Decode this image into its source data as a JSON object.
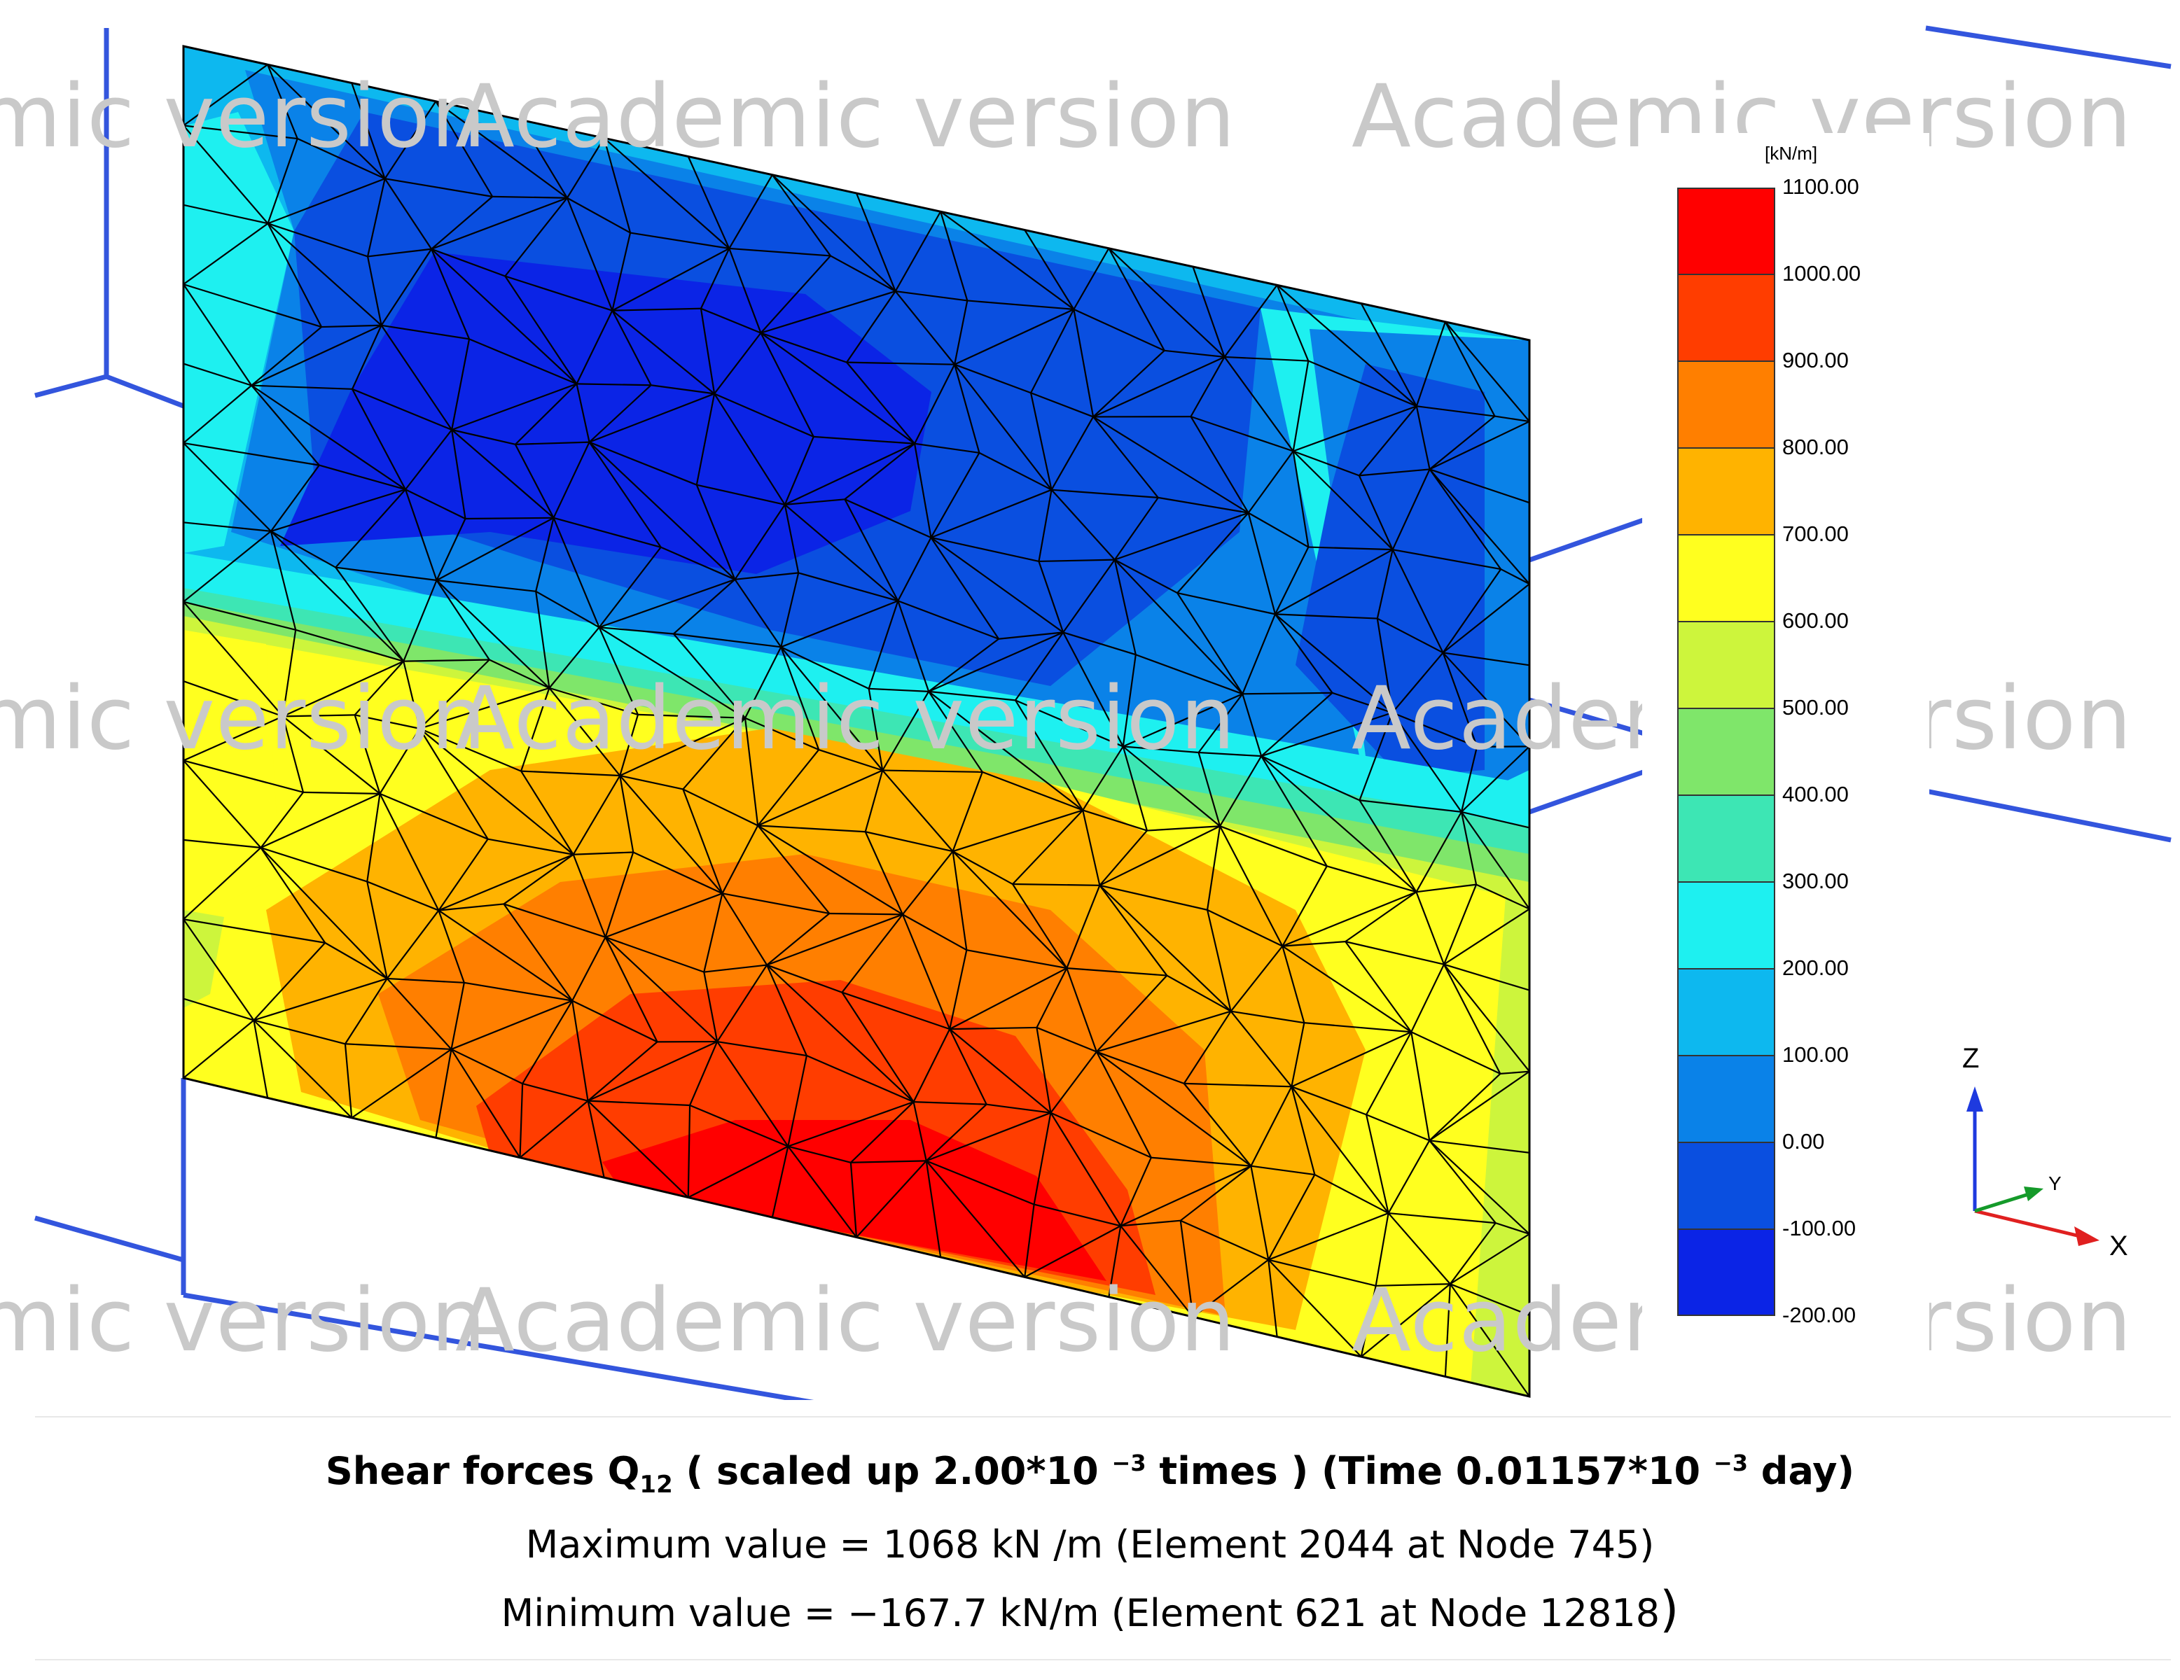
{
  "watermark": {
    "text": "Academic version"
  },
  "legend": {
    "unit": "[kN/m]",
    "levels": [
      "1100.00",
      "1000.00",
      "900.00",
      "800.00",
      "700.00",
      "600.00",
      "500.00",
      "400.00",
      "300.00",
      "200.00",
      "100.00",
      "0.00",
      "-100.00",
      "-200.00"
    ],
    "colors": [
      "#ff0000",
      "#ff3d00",
      "#ff7f00",
      "#ffb300",
      "#ffff1f",
      "#cdf53c",
      "#7fe66a",
      "#3de6b4",
      "#1ef0f0",
      "#0db8ef",
      "#0a82e8",
      "#0a4fe0",
      "#0b24e6"
    ]
  },
  "axes_triad": {
    "z": "Z",
    "y": "Y",
    "x": "X"
  },
  "caption": {
    "title_pre": "Shear forces Q",
    "title_sub": "12",
    "title_mid": " ( scaled up 2.00*10 ",
    "title_exp1": "−3",
    "title_post": " times ) (Time 0.01157*10 ",
    "title_exp2": "−3",
    "title_end": " day)",
    "max_line": "Maximum value = 1068 kN /m (Element 2044 at Node 745)",
    "min_line": "Minimum value = −167.7 kN/m (Element 621 at Node 12818",
    "min_paren": ")"
  },
  "colors": {
    "guide_lines": "#3355dd",
    "mesh": "#000000"
  }
}
